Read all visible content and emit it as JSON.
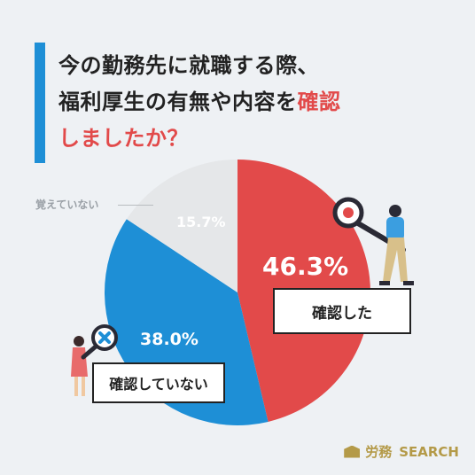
{
  "title": {
    "line1": "今の勤務先に就職する際、",
    "line2_prefix": "福利厚生の有無や内容を",
    "line2_highlight": "確認",
    "line3": "しましたか？"
  },
  "chart_data": {
    "type": "pie",
    "slices": [
      {
        "label": "確認した",
        "value": 46.3,
        "value_label": "46.3%",
        "color": "#e24a4a"
      },
      {
        "label": "確認していない",
        "value": 38.0,
        "value_label": "38.0%",
        "color": "#1e8fd6"
      },
      {
        "label": "覚えていない",
        "value": 15.7,
        "value_label": "15.7%",
        "color": "#e5e7e9"
      }
    ],
    "start": "top",
    "direction": "clockwise"
  },
  "brand": {
    "name": "労務",
    "suffix": "SEARCH"
  },
  "colors": {
    "background": "#eef1f4",
    "accent_blue": "#1e8fd6",
    "accent_red": "#e24a4a",
    "gray": "#e5e7e9",
    "brand_gold": "#b49a48"
  }
}
